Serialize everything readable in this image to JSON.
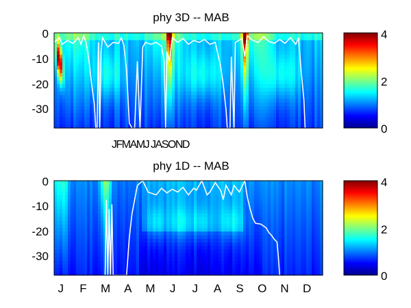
{
  "chart_data": [
    {
      "type": "heatmap",
      "title": "phy 3D   -- MAB",
      "xlabel": "",
      "ylabel": "",
      "yticks": [
        "0",
        "-10",
        "-20",
        "-30"
      ],
      "ylim": [
        -38,
        0
      ],
      "x_below_label": "JFMAMJ JASOND",
      "colorbar": {
        "ticks": [
          "0",
          "2",
          "4"
        ],
        "range": [
          0,
          4
        ],
        "colormap": "jet"
      },
      "contour_color": "#ffffff",
      "description_values": {
        "years_shown": 3,
        "high_value_bands_x_fraction": [
          0.02,
          0.42,
          0.72
        ],
        "mixed_layer_depth_range": [
          0,
          -38
        ]
      }
    },
    {
      "type": "heatmap",
      "title": "phy 1D   -- MAB",
      "xlabel": "",
      "ylabel": "",
      "yticks": [
        "0",
        "-10",
        "-20",
        "-30"
      ],
      "ylim": [
        -38,
        0
      ],
      "xticks": [
        "J",
        "F",
        "M",
        "A",
        "M",
        "J",
        "J",
        "A",
        "S",
        "O",
        "N",
        "D"
      ],
      "colorbar": {
        "ticks": [
          "0",
          "2",
          "4"
        ],
        "range": [
          0,
          4
        ],
        "colormap": "jet"
      },
      "contour_color": "#ffffff"
    }
  ],
  "colors": {
    "jet_low": "#00008f",
    "jet_mid": "#00ffff",
    "jet_high": "#800000",
    "frame": "#000000"
  }
}
